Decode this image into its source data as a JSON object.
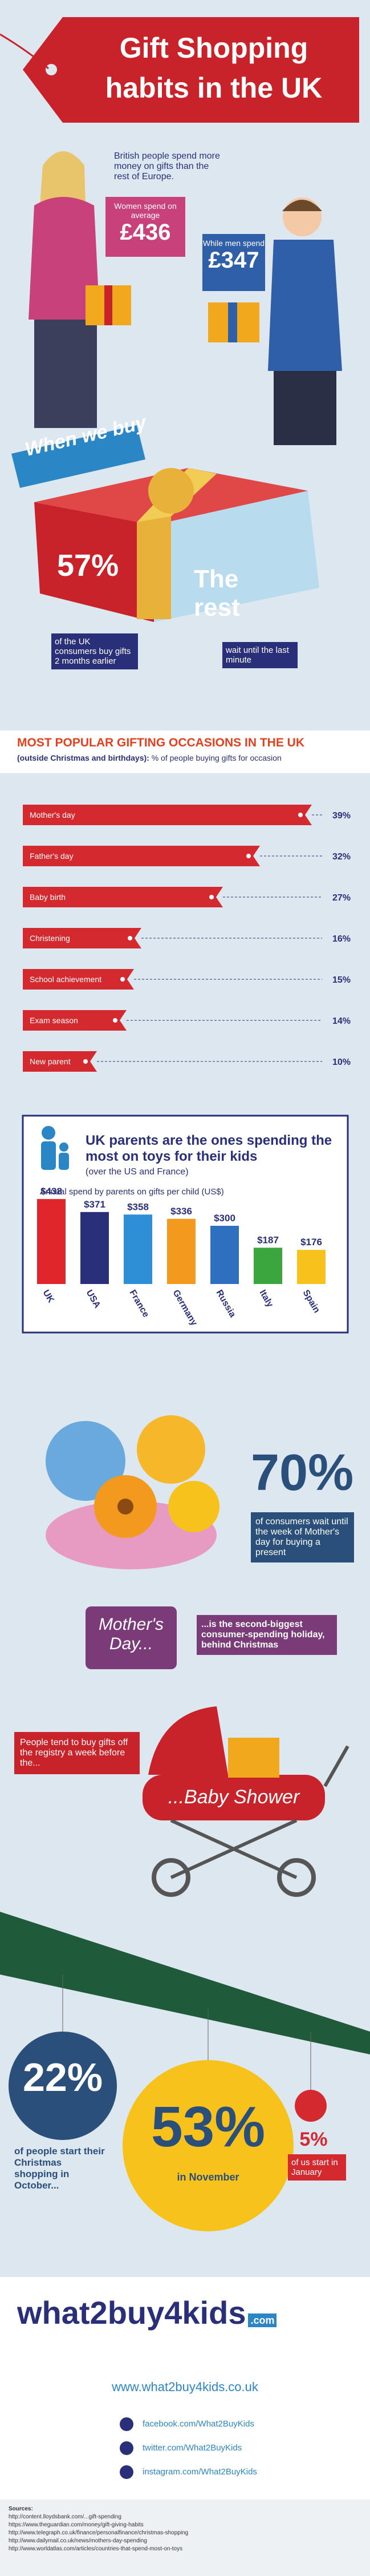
{
  "header": {
    "title_line1": "Gift Shopping",
    "title_line2": "habits in the UK"
  },
  "spending": {
    "intro": "British people spend more money on gifts than the rest of Europe.",
    "women_label": "Women spend on average",
    "women_value": "£436",
    "men_label": "While men spend",
    "men_value": "£347"
  },
  "timing": {
    "banner": "When we buy",
    "early_value": "57%",
    "rest_label": "The rest",
    "early_text": "of the UK consumers buy gifts 2 months earlier",
    "rest_text": "wait until the last minute"
  },
  "occasions": {
    "title": "MOST POPULAR GIFTING OCCASIONS IN THE UK",
    "subtitle": "(outside Christmas and birthdays):",
    "note": "% of people buying gifts for occasion",
    "color": "#d42a2f",
    "categories": [
      "Mother's day",
      "Father's day",
      "Baby birth",
      "Christening",
      "School achievement",
      "Exam season",
      "New parent"
    ],
    "values": [
      39,
      32,
      27,
      16,
      15,
      14,
      10
    ],
    "value_labels": [
      "39%",
      "32%",
      "27%",
      "16%",
      "15%",
      "14%",
      "10%"
    ]
  },
  "toys": {
    "title": "UK parents are the ones spending the most on toys for their kids",
    "subtitle": "(over the US and France)",
    "note": "Annual spend by parents on gifts per child (US$)",
    "categories": [
      "UK",
      "USA",
      "France",
      "Germany",
      "Russia",
      "Italy",
      "Spain"
    ],
    "values": [
      438,
      371,
      358,
      336,
      300,
      187,
      176
    ],
    "value_labels": [
      "$438",
      "$371",
      "$358",
      "$336",
      "$300",
      "$187",
      "$176"
    ],
    "colors": [
      "#e0262b",
      "#2a2f7a",
      "#2f8fd6",
      "#f39a1e",
      "#2f6fc0",
      "#3aa63d",
      "#f6c21b"
    ]
  },
  "mothers_day": {
    "value": "70%",
    "text": "of consumers wait until the week of Mother's day for buying a present",
    "badge": "Mother's Day...",
    "note": "...is the second-biggest consumer-spending holiday, behind Christmas"
  },
  "baby_shower": {
    "text": "People tend to buy gifts off the registry a week before the...",
    "badge": "...Baby Shower"
  },
  "christmas": {
    "october_value": "22%",
    "october_text": "of people start their Christmas shopping in October...",
    "november_value": "53%",
    "november_text": "in November",
    "january_value": "5%",
    "january_text": "of us start in January"
  },
  "footer": {
    "logo": "what2buy4kids",
    "logo_suffix": ".com",
    "website": "www.what2buy4kids.co.uk",
    "facebook": "facebook.com/What2BuyKids",
    "twitter": "twitter.com/What2BuyKids",
    "instagram": "instagram.com/What2BuyKids",
    "sources_title": "Sources:",
    "sources": [
      "http://content.lloydsbank.com/...gift-spending",
      "https://www.theguardian.com/money/gift-giving-habits",
      "http://www.telegraph.co.uk/finance/personalfinance/christmas-shopping",
      "http://www.dailymail.co.uk/news/mothers-day-spending",
      "http://www.worldatlas.com/articles/countries-that-spend-most-on-toys"
    ]
  }
}
